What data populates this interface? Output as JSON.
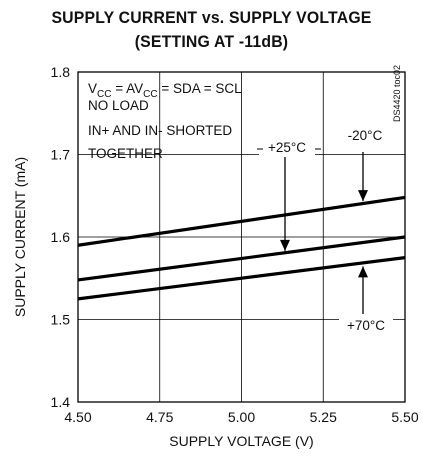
{
  "chart_data": {
    "type": "line",
    "title": "SUPPLY CURRENT vs. SUPPLY VOLTAGE",
    "subtitle": "(SETTING AT -11dB)",
    "xlabel": "SUPPLY VOLTAGE (V)",
    "ylabel": "SUPPLY CURRENT (mA)",
    "xlim": [
      4.5,
      5.5
    ],
    "ylim": [
      1.4,
      1.8
    ],
    "xticks": [
      "4.50",
      "4.75",
      "5.00",
      "5.25",
      "5.50"
    ],
    "yticks": [
      "1.4",
      "1.5",
      "1.6",
      "1.7",
      "1.8"
    ],
    "grid": true,
    "series": [
      {
        "name": "-20°C",
        "x": [
          4.5,
          5.5
        ],
        "y": [
          1.59,
          1.648
        ]
      },
      {
        "name": "+25°C",
        "x": [
          4.5,
          5.5
        ],
        "y": [
          1.548,
          1.6
        ]
      },
      {
        "name": "+70°C",
        "x": [
          4.5,
          5.5
        ],
        "y": [
          1.525,
          1.575
        ]
      }
    ],
    "annotations": {
      "conditions": [
        "V",
        "CC",
        " = AV",
        "CC",
        " = SDA = SCL"
      ],
      "lines": [
        "NO LOAD",
        "IN+ AND IN- SHORTED",
        "TOGETHER"
      ],
      "label_cold": "-20°C",
      "label_room": "+25°C",
      "label_hot": "+70°C",
      "code": "DS4420 toc02"
    }
  }
}
